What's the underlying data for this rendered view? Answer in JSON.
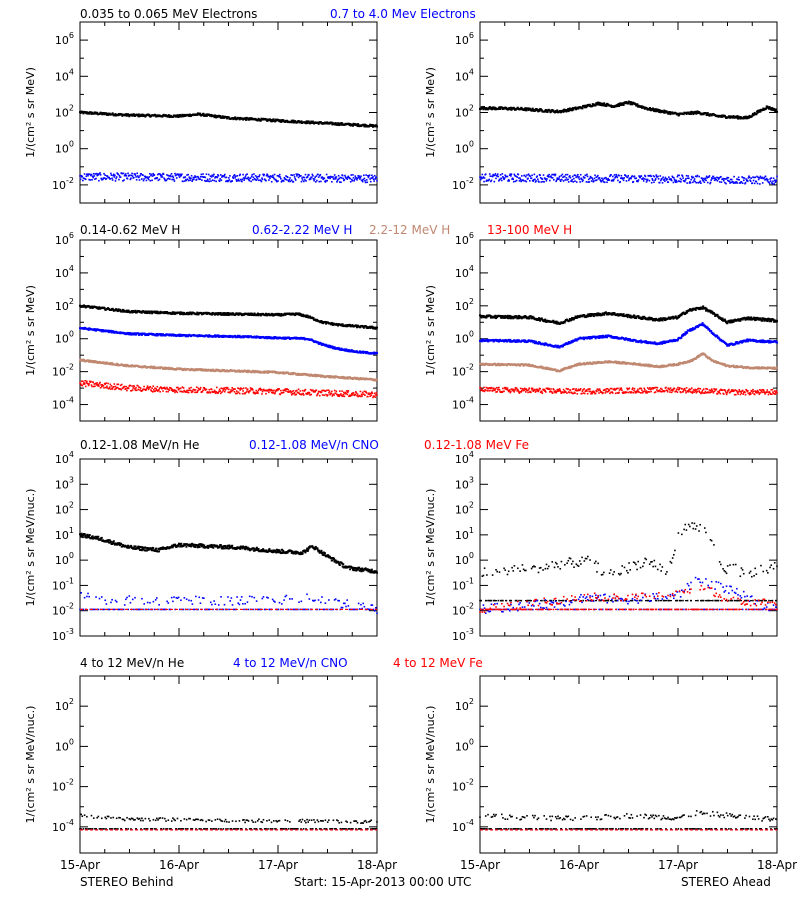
{
  "colors": {
    "black": "#000000",
    "blue": "#0000ff",
    "brown": "#c08870",
    "red": "#ff0000"
  },
  "footer": {
    "left": "STEREO Behind",
    "center": "Start: 15-Apr-2013 00:00 UTC",
    "right": "STEREO Ahead"
  },
  "x_ticks": [
    "15-Apr",
    "16-Apr",
    "17-Apr",
    "18-Apr"
  ],
  "rows": [
    {
      "legend": [
        {
          "text": "0.035 to 0.065 MeV Electrons",
          "color": "#000000"
        },
        {
          "text": "0.7 to 4.0 Mev Electrons",
          "color": "#0000ff"
        }
      ]
    },
    {
      "legend": [
        {
          "text": "0.14-0.62 MeV H",
          "color": "#000000"
        },
        {
          "text": "0.62-2.22 MeV H",
          "color": "#0000ff"
        },
        {
          "text": "2.2-12 MeV H",
          "color": "#c08870"
        },
        {
          "text": "13-100 MeV H",
          "color": "#ff0000"
        }
      ]
    },
    {
      "legend": [
        {
          "text": "0.12-1.08 MeV/n He",
          "color": "#000000"
        },
        {
          "text": "0.12-1.08 MeV/n CNO",
          "color": "#0000ff"
        },
        {
          "text": "0.12-1.08 MeV Fe",
          "color": "#ff0000"
        }
      ]
    },
    {
      "legend": [
        {
          "text": "4 to 12 MeV/n He",
          "color": "#000000"
        },
        {
          "text": "4 to 12 MeV/n CNO",
          "color": "#0000ff"
        },
        {
          "text": "4 to 12 MeV Fe",
          "color": "#ff0000"
        }
      ]
    }
  ],
  "chart_data": [
    {
      "type": "scatter",
      "panel": "electrons-behind",
      "row": 0,
      "col": 0,
      "ylabel": "1/(cm² s sr MeV)",
      "yscale": "log",
      "ylim_exp": [
        -3.0,
        7.0
      ],
      "y_ticks_exp": [
        -2,
        0,
        2,
        4,
        6
      ],
      "x_days": [
        0,
        3
      ],
      "x_tick_labels": [
        "15-Apr",
        "16-Apr",
        "17-Apr",
        "18-Apr"
      ],
      "series": [
        {
          "name": "0.035 to 0.065 MeV Electrons",
          "color": "#000000",
          "style": "line",
          "x": [
            0,
            0.5,
            1.0,
            1.2,
            1.5,
            2.0,
            2.5,
            3.0
          ],
          "y_exp": [
            2.0,
            1.85,
            1.8,
            1.9,
            1.7,
            1.55,
            1.4,
            1.25
          ],
          "jitter": 0.06
        },
        {
          "name": "0.7 to 4.0 Mev Electrons",
          "color": "#0000ff",
          "style": "scatter",
          "x": [
            0,
            1.5,
            3.0
          ],
          "y_exp": [
            -1.55,
            -1.6,
            -1.65
          ],
          "jitter": 0.22
        }
      ]
    },
    {
      "type": "scatter",
      "panel": "electrons-ahead",
      "row": 0,
      "col": 1,
      "ylabel": "1/(cm² s sr MeV)",
      "yscale": "log",
      "ylim_exp": [
        -3.0,
        7.0
      ],
      "y_ticks_exp": [
        -2,
        0,
        2,
        4,
        6
      ],
      "x_days": [
        0,
        3
      ],
      "x_tick_labels": [
        "15-Apr",
        "16-Apr",
        "17-Apr",
        "18-Apr"
      ],
      "series": [
        {
          "name": "0.035 to 0.065 MeV Electrons",
          "color": "#000000",
          "style": "line",
          "x": [
            0,
            0.4,
            0.8,
            1.0,
            1.2,
            1.35,
            1.5,
            1.7,
            2.0,
            2.2,
            2.4,
            2.7,
            2.9,
            3.0
          ],
          "y_exp": [
            2.25,
            2.2,
            2.05,
            2.25,
            2.5,
            2.35,
            2.55,
            2.2,
            1.9,
            2.0,
            1.8,
            1.7,
            2.3,
            2.1
          ],
          "jitter": 0.07
        },
        {
          "name": "0.7 to 4.0 Mev Electrons",
          "color": "#0000ff",
          "style": "scatter",
          "x": [
            0,
            1.5,
            3.0
          ],
          "y_exp": [
            -1.6,
            -1.65,
            -1.75
          ],
          "jitter": 0.22
        }
      ]
    },
    {
      "type": "scatter",
      "panel": "protons-behind",
      "row": 1,
      "col": 0,
      "ylabel": "1/(cm² s sr MeV)",
      "yscale": "log",
      "ylim_exp": [
        -5.0,
        6.0
      ],
      "y_ticks_exp": [
        -4,
        -2,
        0,
        2,
        4,
        6
      ],
      "x_days": [
        0,
        3
      ],
      "x_tick_labels": [
        "15-Apr",
        "16-Apr",
        "17-Apr",
        "18-Apr"
      ],
      "series": [
        {
          "name": "0.14-0.62 MeV H",
          "color": "#000000",
          "style": "line",
          "x": [
            0,
            0.5,
            1.0,
            1.5,
            2.0,
            2.2,
            2.3,
            2.45,
            2.6,
            2.8,
            3.0
          ],
          "y_exp": [
            2.0,
            1.65,
            1.55,
            1.5,
            1.45,
            1.5,
            1.35,
            1.0,
            0.85,
            0.75,
            0.65
          ],
          "jitter": 0.06
        },
        {
          "name": "0.62-2.22 MeV H",
          "color": "#0000ff",
          "style": "line",
          "x": [
            0,
            0.5,
            1.0,
            1.5,
            2.0,
            2.3,
            2.45,
            2.6,
            2.8,
            3.0
          ],
          "y_exp": [
            0.65,
            0.3,
            0.2,
            0.15,
            0.05,
            0.0,
            -0.35,
            -0.6,
            -0.8,
            -0.9
          ],
          "jitter": 0.05
        },
        {
          "name": "2.2-12 MeV H",
          "color": "#c08870",
          "style": "line",
          "x": [
            0,
            0.5,
            1.0,
            1.5,
            2.0,
            2.5,
            3.0
          ],
          "y_exp": [
            -1.3,
            -1.65,
            -1.85,
            -1.95,
            -2.05,
            -2.3,
            -2.5
          ],
          "jitter": 0.05
        },
        {
          "name": "13-100 MeV H",
          "color": "#ff0000",
          "style": "scatter",
          "x": [
            0,
            0.5,
            1.0,
            1.5,
            2.0,
            2.5,
            3.0
          ],
          "y_exp": [
            -2.7,
            -3.0,
            -3.1,
            -3.15,
            -3.2,
            -3.3,
            -3.4
          ],
          "jitter": 0.18
        }
      ]
    },
    {
      "type": "scatter",
      "panel": "protons-ahead",
      "row": 1,
      "col": 1,
      "ylabel": "1/(cm² s sr MeV)",
      "yscale": "log",
      "ylim_exp": [
        -5.0,
        6.0
      ],
      "y_ticks_exp": [
        -4,
        -2,
        0,
        2,
        4,
        6
      ],
      "x_days": [
        0,
        3
      ],
      "x_tick_labels": [
        "15-Apr",
        "16-Apr",
        "17-Apr",
        "18-Apr"
      ],
      "series": [
        {
          "name": "0.14-0.62 MeV H",
          "color": "#000000",
          "style": "line",
          "x": [
            0,
            0.5,
            0.8,
            1.0,
            1.3,
            1.6,
            1.8,
            2.0,
            2.1,
            2.25,
            2.35,
            2.5,
            2.7,
            3.0
          ],
          "y_exp": [
            1.35,
            1.3,
            0.95,
            1.35,
            1.55,
            1.3,
            1.15,
            1.3,
            1.7,
            1.9,
            1.55,
            1.0,
            1.25,
            1.1
          ],
          "jitter": 0.08
        },
        {
          "name": "0.62-2.22 MeV H",
          "color": "#0000ff",
          "style": "line",
          "x": [
            0,
            0.5,
            0.8,
            1.0,
            1.3,
            1.6,
            1.8,
            2.0,
            2.1,
            2.25,
            2.35,
            2.5,
            2.7,
            3.0
          ],
          "y_exp": [
            -0.1,
            -0.15,
            -0.5,
            0.0,
            0.15,
            -0.15,
            -0.3,
            -0.05,
            0.45,
            0.9,
            0.35,
            -0.4,
            -0.1,
            -0.2
          ],
          "jitter": 0.06
        },
        {
          "name": "2.2-12 MeV H",
          "color": "#c08870",
          "style": "line",
          "x": [
            0,
            0.5,
            0.8,
            1.0,
            1.3,
            1.6,
            1.8,
            2.0,
            2.15,
            2.25,
            2.35,
            2.5,
            2.7,
            3.0
          ],
          "y_exp": [
            -1.55,
            -1.6,
            -1.95,
            -1.55,
            -1.4,
            -1.55,
            -1.7,
            -1.55,
            -1.3,
            -0.9,
            -1.35,
            -1.65,
            -1.75,
            -1.8
          ],
          "jitter": 0.05
        },
        {
          "name": "13-100 MeV H",
          "color": "#ff0000",
          "style": "scatter",
          "x": [
            0,
            0.5,
            1.0,
            1.5,
            2.0,
            2.5,
            3.0
          ],
          "y_exp": [
            -3.1,
            -3.15,
            -3.2,
            -3.15,
            -3.1,
            -3.25,
            -3.25
          ],
          "jitter": 0.16
        }
      ]
    },
    {
      "type": "scatter",
      "panel": "heavy-low-behind",
      "row": 2,
      "col": 0,
      "ylabel": "1/(cm² s sr MeV/nuc.)",
      "yscale": "log",
      "ylim_exp": [
        -3.0,
        4.0
      ],
      "y_ticks_exp": [
        -3,
        -2,
        -1,
        0,
        1,
        2,
        3,
        4
      ],
      "x_days": [
        0,
        3
      ],
      "x_tick_labels": [
        "15-Apr",
        "16-Apr",
        "17-Apr",
        "18-Apr"
      ],
      "series": [
        {
          "name": "0.12-1.08 MeV/n He",
          "color": "#000000",
          "style": "line",
          "x": [
            0,
            0.2,
            0.5,
            0.8,
            1.0,
            1.3,
            1.6,
            2.0,
            2.25,
            2.35,
            2.5,
            2.7,
            3.0
          ],
          "y_exp": [
            1.0,
            0.85,
            0.5,
            0.4,
            0.6,
            0.55,
            0.5,
            0.35,
            0.3,
            0.55,
            0.15,
            -0.3,
            -0.45
          ],
          "jitter": 0.07
        },
        {
          "name": "0.12-1.08 MeV/n CNO",
          "color": "#0000ff",
          "style": "sparse",
          "x": [
            0,
            0.3,
            1.0,
            2.0,
            2.3,
            3.0
          ],
          "y_exp": [
            -1.35,
            -1.6,
            -1.6,
            -1.6,
            -1.45,
            -1.95
          ],
          "jitter": 0.18,
          "floor_exp": -1.95
        },
        {
          "name": "0.12-1.08 MeV Fe",
          "color": "#ff0000",
          "style": "floor",
          "x": [
            0,
            3.0
          ],
          "y_exp": [
            -1.95,
            -1.95
          ],
          "jitter": 0.0
        }
      ]
    },
    {
      "type": "scatter",
      "panel": "heavy-low-ahead",
      "row": 2,
      "col": 1,
      "ylabel": "1/(cm² s sr MeV/nuc.)",
      "yscale": "log",
      "ylim_exp": [
        -3.0,
        4.0
      ],
      "y_ticks_exp": [
        -3,
        -2,
        -1,
        0,
        1,
        2,
        3,
        4
      ],
      "x_days": [
        0,
        3
      ],
      "x_tick_labels": [
        "15-Apr",
        "16-Apr",
        "17-Apr",
        "18-Apr"
      ],
      "series": [
        {
          "name": "0.12-1.08 MeV/n He",
          "color": "#000000",
          "style": "sparse",
          "x": [
            0,
            0.5,
            0.8,
            1.1,
            1.3,
            1.5,
            1.7,
            1.9,
            2.0,
            2.1,
            2.3,
            2.45,
            2.55,
            2.7,
            3.0
          ],
          "y_exp": [
            -0.5,
            -0.35,
            -0.15,
            -0.05,
            -0.6,
            -0.3,
            0.0,
            -0.5,
            0.9,
            1.35,
            1.2,
            -0.5,
            -0.3,
            -0.6,
            -0.2
          ],
          "jitter": 0.2,
          "floor_exp": -1.6
        },
        {
          "name": "0.12-1.08 MeV/n CNO",
          "color": "#0000ff",
          "style": "sparse",
          "x": [
            0,
            0.8,
            1.0,
            1.5,
            2.0,
            2.2,
            2.4,
            3.0
          ],
          "y_exp": [
            -1.95,
            -1.7,
            -1.5,
            -1.55,
            -1.4,
            -0.8,
            -1.0,
            -1.95
          ],
          "jitter": 0.18,
          "floor_exp": -1.95
        },
        {
          "name": "0.12-1.08 MeV Fe",
          "color": "#ff0000",
          "style": "sparse",
          "x": [
            0,
            1.1,
            1.5,
            2.0,
            2.3,
            2.5,
            3.0
          ],
          "y_exp": [
            -1.95,
            -1.45,
            -1.5,
            -1.35,
            -1.1,
            -1.6,
            -1.7
          ],
          "jitter": 0.15,
          "floor_exp": -1.95
        }
      ]
    },
    {
      "type": "scatter",
      "panel": "heavy-high-behind",
      "row": 3,
      "col": 0,
      "ylabel": "1/(cm² s sr MeV/nuc.)",
      "yscale": "log",
      "ylim_exp": [
        -5.3,
        3.5
      ],
      "y_ticks_exp": [
        -4,
        -2,
        0,
        2
      ],
      "x_days": [
        0,
        3
      ],
      "x_tick_labels": [
        "15-Apr",
        "16-Apr",
        "17-Apr",
        "18-Apr"
      ],
      "series": [
        {
          "name": "4 to 12 MeV/n He",
          "color": "#000000",
          "style": "sparse",
          "x": [
            0,
            0.4,
            1.0,
            1.5,
            2.0,
            3.0
          ],
          "y_exp": [
            -3.45,
            -3.6,
            -3.65,
            -3.7,
            -3.7,
            -3.75
          ],
          "jitter": 0.08,
          "floor_exp": -4.1
        },
        {
          "name": "4 to 12 MeV/n CNO",
          "color": "#0000ff",
          "style": "floor",
          "x": [
            0,
            3.0
          ],
          "y_exp": [
            -4.15,
            -4.15
          ],
          "jitter": 0.0
        },
        {
          "name": "4 to 12 MeV Fe",
          "color": "#ff0000",
          "style": "floor",
          "x": [
            0,
            3.0
          ],
          "y_exp": [
            -4.15,
            -4.15
          ],
          "jitter": 0.0
        }
      ]
    },
    {
      "type": "scatter",
      "panel": "heavy-high-ahead",
      "row": 3,
      "col": 1,
      "ylabel": "1/(cm² s sr MeV/nuc.)",
      "yscale": "log",
      "ylim_exp": [
        -5.3,
        3.5
      ],
      "y_ticks_exp": [
        -4,
        -2,
        0,
        2
      ],
      "x_days": [
        0,
        3
      ],
      "x_tick_labels": [
        "15-Apr",
        "16-Apr",
        "17-Apr",
        "18-Apr"
      ],
      "series": [
        {
          "name": "4 to 12 MeV/n He",
          "color": "#000000",
          "style": "sparse",
          "x": [
            0,
            0.5,
            1.0,
            1.5,
            2.0,
            2.2,
            3.0
          ],
          "y_exp": [
            -3.45,
            -3.55,
            -3.6,
            -3.45,
            -3.55,
            -3.3,
            -3.65
          ],
          "jitter": 0.12,
          "floor_exp": -4.1
        },
        {
          "name": "4 to 12 MeV/n CNO",
          "color": "#0000ff",
          "style": "floor",
          "x": [
            0,
            3.0
          ],
          "y_exp": [
            -4.15,
            -4.15
          ],
          "jitter": 0.0
        },
        {
          "name": "4 to 12 MeV Fe",
          "color": "#ff0000",
          "style": "floor",
          "x": [
            0,
            3.0
          ],
          "y_exp": [
            -4.15,
            -4.15
          ],
          "jitter": 0.0
        }
      ]
    }
  ]
}
